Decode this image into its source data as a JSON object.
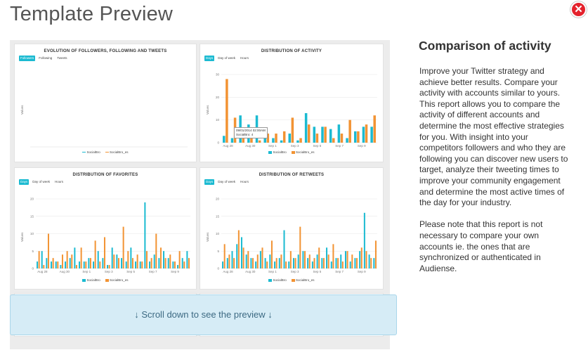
{
  "header": {
    "title": "Template Preview",
    "close_symbol": "✕"
  },
  "side": {
    "title": "Comparison of activity",
    "paragraph1": "Improve your Twitter strategy and achieve better results. Compare your activity with accounts similar to yours. This report allows you to compare the activity of different accounts and determine the most effective strategies for you. With insight into your competitors followers and who they are following you can discover new users to target, analyze their tweeting times to improve your community engagement and determine the most active times of the day for your industry.",
    "paragraph2": "Please note that this report is not necessary to compare your own accounts ie. the ones that are synchronized or authenticated in Audiense."
  },
  "scroll_hint": "↓ Scroll down to see the preview ↓",
  "colors": {
    "series1": "#1bbad1",
    "series2": "#f29333",
    "accent": "#1bbad1",
    "close": "#e4222c"
  },
  "chart_data": [
    {
      "type": "line",
      "title": "EVOLUTION OF FOLLOWERS, FOLLOWING AND TWEETS",
      "tabs": [
        "Followers",
        "Following",
        "Tweets"
      ],
      "active_tab": "Followers",
      "ylabel": "Values",
      "series": [
        {
          "name": "SocialBro",
          "values": []
        },
        {
          "name": "SocialBro_es",
          "values": []
        }
      ],
      "legend": "bottom"
    },
    {
      "type": "bar",
      "title": "DISTRIBUTION OF ACTIVITY",
      "tabs": [
        "Days",
        "Day of week",
        "Hours"
      ],
      "active_tab": "Days",
      "ylabel": "Values",
      "ylim": [
        0,
        30
      ],
      "yticks": [
        0,
        10,
        20,
        30
      ],
      "xticks": [
        "Aug 28",
        "Aug 30",
        "Sep 1",
        "Sep 3",
        "Sep 5",
        "Sep 7",
        "Sep 9"
      ],
      "tooltip": {
        "line1": "09/01/2014 02:00AM",
        "line2": "SocialBro: 4"
      },
      "series": [
        {
          "name": "SocialBro",
          "values": [
            3,
            2,
            12,
            8,
            12,
            3,
            2,
            1,
            4,
            1,
            13,
            7,
            7,
            6,
            8,
            2,
            5,
            7,
            7
          ]
        },
        {
          "name": "SocialBro_es",
          "values": [
            28,
            11,
            4,
            4,
            1,
            4,
            4,
            5,
            11,
            2,
            8,
            4,
            7,
            2,
            4,
            10,
            5,
            8,
            12
          ]
        }
      ],
      "legend": "bottom"
    },
    {
      "type": "bar",
      "title": "DISTRIBUTION OF FAVORITES",
      "tabs": [
        "Days",
        "Day of week",
        "Hours"
      ],
      "active_tab": "Days",
      "ylabel": "Values",
      "ylim": [
        0,
        20
      ],
      "yticks": [
        0,
        5,
        10,
        15,
        20
      ],
      "xticks": [
        "Aug 28",
        "Aug 30",
        "Sep 1",
        "Sep 3",
        "Sep 5",
        "Sep 7",
        "Sep 9"
      ],
      "series": [
        {
          "name": "SocialBro",
          "values": [
            2,
            5,
            3,
            2,
            2,
            1,
            2,
            3,
            6,
            2,
            2,
            3,
            2,
            5,
            3,
            1,
            6,
            4,
            3,
            2,
            6,
            2,
            2,
            19,
            2,
            4,
            3,
            5,
            3,
            2,
            1,
            3,
            5
          ]
        },
        {
          "name": "SocialBro_es",
          "values": [
            5,
            1,
            10,
            3,
            2,
            4,
            5,
            4,
            1,
            6,
            2,
            3,
            8,
            2,
            9,
            1,
            4,
            3,
            12,
            5,
            3,
            4,
            2,
            5,
            3,
            10,
            6,
            3,
            4,
            2,
            5,
            2,
            3
          ]
        }
      ],
      "legend": "bottom"
    },
    {
      "type": "bar",
      "title": "DISTRIBUTION OF RETWEETS",
      "tabs": [
        "Days",
        "Day of week",
        "Hours"
      ],
      "active_tab": "Days",
      "ylabel": "Values",
      "ylim": [
        0,
        20
      ],
      "yticks": [
        0,
        5,
        10,
        15,
        20
      ],
      "xticks": [
        "Aug 28",
        "Aug 30",
        "Sep 1",
        "Sep 3",
        "Sep 5",
        "Sep 7",
        "Sep 9"
      ],
      "series": [
        {
          "name": "SocialBro",
          "values": [
            2,
            3,
            5,
            7,
            9,
            4,
            3,
            2,
            5,
            3,
            4,
            2,
            3,
            11,
            2,
            3,
            4,
            5,
            3,
            2,
            4,
            3,
            6,
            2,
            3,
            4,
            5,
            2,
            3,
            5,
            16,
            4,
            3
          ]
        },
        {
          "name": "SocialBro_es",
          "values": [
            7,
            4,
            3,
            11,
            6,
            5,
            3,
            4,
            6,
            2,
            8,
            3,
            4,
            2,
            5,
            3,
            12,
            5,
            4,
            3,
            6,
            3,
            4,
            7,
            3,
            2,
            5,
            4,
            3,
            6,
            5,
            3,
            8
          ]
        }
      ],
      "legend": "bottom"
    }
  ]
}
